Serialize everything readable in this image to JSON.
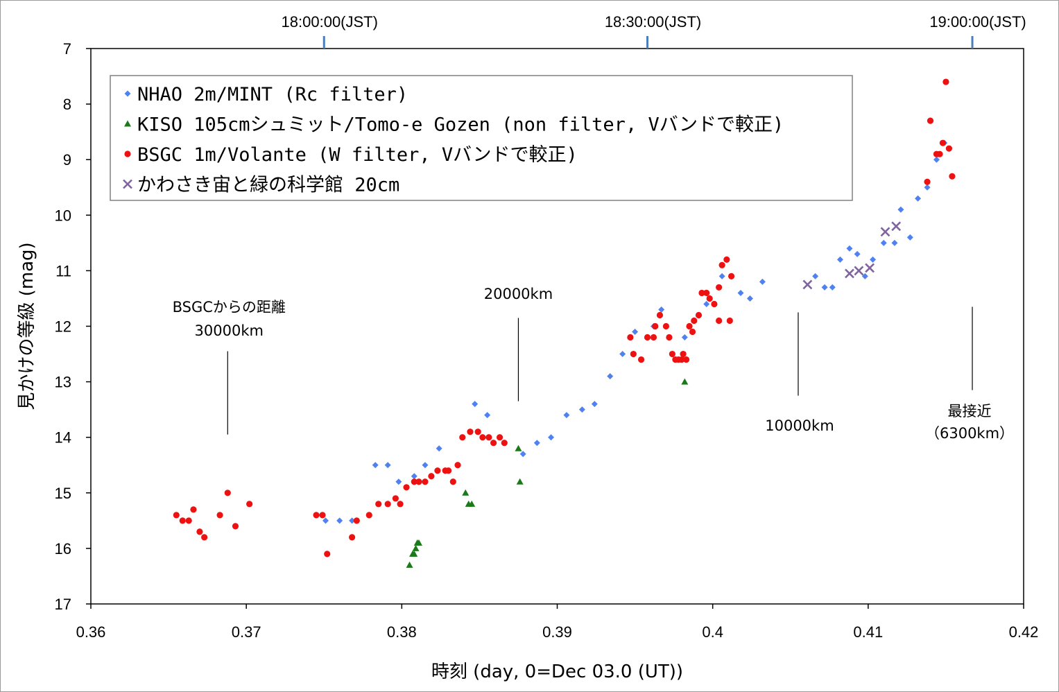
{
  "chart_data": {
    "type": "scatter",
    "xlabel": "時刻 (day, 0=Dec 03.0 (UT))",
    "ylabel": "見かけの等級 (mag)",
    "xlim": [
      0.36,
      0.42
    ],
    "ylim": [
      17,
      7
    ],
    "y_inverted": true,
    "grid": false,
    "legend_position": "top-left",
    "x_ticks": [
      "0.36",
      "0.37",
      "0.38",
      "0.39",
      "0.4",
      "0.41",
      "0.42"
    ],
    "y_ticks": [
      "7",
      "8",
      "9",
      "10",
      "11",
      "12",
      "13",
      "14",
      "15",
      "16",
      "17"
    ],
    "top_axis": {
      "color": "#4a7ebb",
      "ticks": [
        {
          "x": 0.375,
          "label": "18:00:00(JST)"
        },
        {
          "x": 0.3958,
          "label": "18:30:00(JST)"
        },
        {
          "x": 0.4167,
          "label": "19:00:00(JST)"
        }
      ]
    },
    "annotations": [
      {
        "lines": [
          "BSGCからの距離",
          "30000km"
        ],
        "x": 0.3688,
        "line_from": 12.45,
        "line_to": 13.95
      },
      {
        "lines": [
          "20000km"
        ],
        "x": 0.3875,
        "line_from": 11.85,
        "line_to": 13.35
      },
      {
        "lines": [
          "10000km"
        ],
        "x": 0.4055,
        "line_from": 11.75,
        "line_to": 13.25
      },
      {
        "lines": [
          "最接近",
          "（6300km）"
        ],
        "x": 0.4167,
        "line_from": 11.65,
        "line_to": 13.15
      }
    ],
    "series": [
      {
        "name": "NHAO 2m/MINT (Rc filter)",
        "marker": "diamond",
        "color": "#4f81f0",
        "points": [
          [
            0.3751,
            15.5
          ],
          [
            0.376,
            15.5
          ],
          [
            0.3768,
            15.5
          ],
          [
            0.3783,
            14.5
          ],
          [
            0.3791,
            14.5
          ],
          [
            0.3798,
            14.8
          ],
          [
            0.3808,
            14.7
          ],
          [
            0.3815,
            14.5
          ],
          [
            0.3824,
            14.2
          ],
          [
            0.3847,
            13.4
          ],
          [
            0.3855,
            13.6
          ],
          [
            0.3878,
            14.3
          ],
          [
            0.3887,
            14.1
          ],
          [
            0.3896,
            14.0
          ],
          [
            0.3906,
            13.6
          ],
          [
            0.3916,
            13.5
          ],
          [
            0.3924,
            13.4
          ],
          [
            0.3934,
            12.9
          ],
          [
            0.3942,
            12.5
          ],
          [
            0.395,
            12.1
          ],
          [
            0.3962,
            12.0
          ],
          [
            0.3967,
            11.7
          ],
          [
            0.3982,
            12.2
          ],
          [
            0.3996,
            11.6
          ],
          [
            0.4006,
            11.1
          ],
          [
            0.4018,
            11.4
          ],
          [
            0.4024,
            11.5
          ],
          [
            0.4032,
            11.2
          ],
          [
            0.4066,
            11.1
          ],
          [
            0.4072,
            11.3
          ],
          [
            0.4077,
            11.3
          ],
          [
            0.4082,
            10.8
          ],
          [
            0.4088,
            10.6
          ],
          [
            0.4093,
            10.7
          ],
          [
            0.4098,
            11.1
          ],
          [
            0.4103,
            10.8
          ],
          [
            0.411,
            10.5
          ],
          [
            0.4117,
            10.5
          ],
          [
            0.4121,
            9.9
          ],
          [
            0.4127,
            10.4
          ],
          [
            0.4132,
            9.7
          ],
          [
            0.4138,
            9.5
          ],
          [
            0.4144,
            9.0
          ],
          [
            0.4149,
            8.7
          ]
        ]
      },
      {
        "name": "KISO 105cmシュミット/Tomo-e Gozen (non filter, Vバンドで較正)",
        "marker": "triangle",
        "color": "#1a7a1a",
        "points": [
          [
            0.3805,
            16.3
          ],
          [
            0.3807,
            16.1
          ],
          [
            0.3808,
            16.1
          ],
          [
            0.3809,
            16.0
          ],
          [
            0.381,
            15.9
          ],
          [
            0.3811,
            15.9
          ],
          [
            0.3841,
            15.0
          ],
          [
            0.3843,
            15.2
          ],
          [
            0.3845,
            15.2
          ],
          [
            0.3875,
            14.2
          ],
          [
            0.3876,
            14.8
          ],
          [
            0.3982,
            13.0
          ]
        ]
      },
      {
        "name": "BSGC 1m/Volante (W filter, Vバンドで較正)",
        "marker": "circle",
        "color": "#ee1111",
        "points": [
          [
            0.3655,
            15.4
          ],
          [
            0.3659,
            15.5
          ],
          [
            0.3663,
            15.5
          ],
          [
            0.3666,
            15.3
          ],
          [
            0.367,
            15.7
          ],
          [
            0.3673,
            15.8
          ],
          [
            0.3683,
            15.4
          ],
          [
            0.3688,
            15.0
          ],
          [
            0.3693,
            15.6
          ],
          [
            0.3702,
            15.2
          ],
          [
            0.3745,
            15.4
          ],
          [
            0.3749,
            15.4
          ],
          [
            0.3752,
            16.1
          ],
          [
            0.3768,
            15.8
          ],
          [
            0.3771,
            15.5
          ],
          [
            0.3779,
            15.4
          ],
          [
            0.3785,
            15.2
          ],
          [
            0.3791,
            15.2
          ],
          [
            0.3796,
            15.1
          ],
          [
            0.3799,
            15.2
          ],
          [
            0.3803,
            14.9
          ],
          [
            0.3808,
            14.8
          ],
          [
            0.3811,
            14.8
          ],
          [
            0.3815,
            14.8
          ],
          [
            0.3819,
            14.7
          ],
          [
            0.3823,
            14.6
          ],
          [
            0.3828,
            14.6
          ],
          [
            0.383,
            14.6
          ],
          [
            0.3833,
            14.8
          ],
          [
            0.3836,
            14.5
          ],
          [
            0.3839,
            14.0
          ],
          [
            0.3844,
            13.9
          ],
          [
            0.3849,
            13.9
          ],
          [
            0.3852,
            14.0
          ],
          [
            0.3856,
            14.0
          ],
          [
            0.3859,
            14.1
          ],
          [
            0.3863,
            14.0
          ],
          [
            0.3866,
            14.1
          ],
          [
            0.3947,
            12.2
          ],
          [
            0.3949,
            12.5
          ],
          [
            0.3954,
            12.6
          ],
          [
            0.3958,
            12.2
          ],
          [
            0.3962,
            12.2
          ],
          [
            0.3963,
            12.0
          ],
          [
            0.3966,
            11.8
          ],
          [
            0.397,
            12.0
          ],
          [
            0.3972,
            12.2
          ],
          [
            0.3974,
            12.5
          ],
          [
            0.3976,
            12.6
          ],
          [
            0.3978,
            12.6
          ],
          [
            0.398,
            12.6
          ],
          [
            0.3981,
            12.5
          ],
          [
            0.3983,
            12.6
          ],
          [
            0.3985,
            12.0
          ],
          [
            0.3987,
            12.1
          ],
          [
            0.3988,
            11.9
          ],
          [
            0.3991,
            11.8
          ],
          [
            0.3993,
            11.4
          ],
          [
            0.3996,
            11.4
          ],
          [
            0.3998,
            11.5
          ],
          [
            0.4001,
            11.6
          ],
          [
            0.4004,
            11.3
          ],
          [
            0.4006,
            10.9
          ],
          [
            0.4009,
            10.8
          ],
          [
            0.4012,
            11.1
          ],
          [
            0.4011,
            11.9
          ],
          [
            0.4004,
            11.9
          ],
          [
            0.4138,
            9.4
          ],
          [
            0.414,
            8.3
          ],
          [
            0.4144,
            8.9
          ],
          [
            0.4146,
            8.9
          ],
          [
            0.4148,
            8.7
          ],
          [
            0.415,
            7.6
          ],
          [
            0.4152,
            8.8
          ],
          [
            0.4154,
            9.3
          ]
        ]
      },
      {
        "name": "かわさき宙と緑の科学館 20cm",
        "marker": "x",
        "color": "#8064a2",
        "points": [
          [
            0.4061,
            11.25
          ],
          [
            0.4088,
            11.05
          ],
          [
            0.4094,
            11.0
          ],
          [
            0.4101,
            10.95
          ],
          [
            0.4111,
            10.3
          ],
          [
            0.4118,
            10.2
          ]
        ]
      }
    ]
  }
}
